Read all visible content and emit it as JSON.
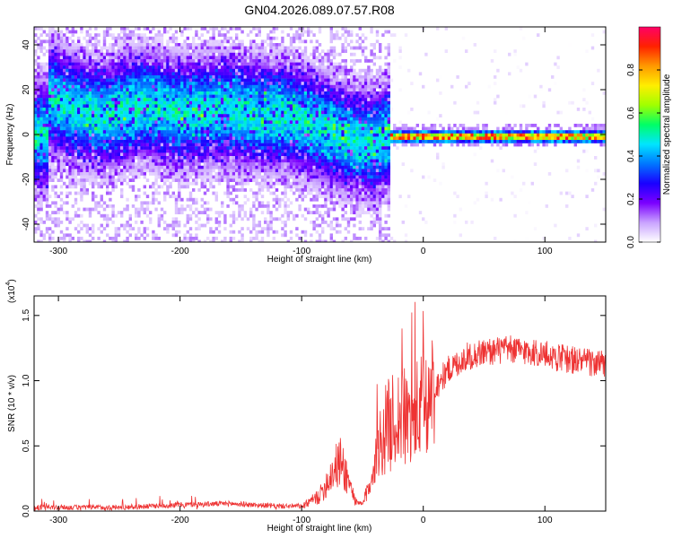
{
  "title": "GN04.2026.089.07.57.R08",
  "chart_data": [
    {
      "type": "heatmap",
      "xlabel": "Height of straight line (km)",
      "ylabel": "Frequency (Hz)",
      "xlim": [
        -320,
        150
      ],
      "ylim": [
        -48,
        48
      ],
      "x_ticks": [
        -300,
        -200,
        -100,
        0,
        100
      ],
      "y_ticks": [
        -40,
        -20,
        0,
        20,
        40
      ],
      "colorbar": {
        "label": "Normalized spectral amplitude",
        "range": [
          0,
          1
        ],
        "ticks": [
          "0.0",
          "0.2",
          "0.4",
          "0.6",
          "0.8"
        ],
        "colors": [
          "#ffffff",
          "#c9a3ff",
          "#7b00ff",
          "#1a00ff",
          "#0077ff",
          "#00e5ff",
          "#00ff66",
          "#a0ff00",
          "#ffee00",
          "#ff9900",
          "#ff2200",
          "#ff0066"
        ]
      },
      "ridge": [
        {
          "x": -310,
          "y": 18
        },
        {
          "x": -290,
          "y": 12
        },
        {
          "x": -260,
          "y": 9
        },
        {
          "x": -230,
          "y": 14
        },
        {
          "x": -200,
          "y": 10
        },
        {
          "x": -170,
          "y": 12
        },
        {
          "x": -140,
          "y": 10
        },
        {
          "x": -110,
          "y": 9
        },
        {
          "x": -80,
          "y": 3
        },
        {
          "x": -60,
          "y": -2
        },
        {
          "x": -40,
          "y": -4
        },
        {
          "x": -30,
          "y": 0
        },
        {
          "x": 0,
          "y": 0
        },
        {
          "x": 50,
          "y": 0
        },
        {
          "x": 100,
          "y": 0
        },
        {
          "x": 150,
          "y": 0
        }
      ]
    },
    {
      "type": "line",
      "xlabel": "Height of straight line (km)",
      "ylabel": "SNR (10 * v/v)",
      "y_multiplier": "(x10",
      "y_multiplier_exp": "4",
      "xlim": [
        -320,
        150
      ],
      "ylim": [
        0,
        1.65
      ],
      "x_ticks": [
        -300,
        -200,
        -100,
        0,
        100
      ],
      "y_ticks": [
        "0.0",
        "0.5",
        "1.0",
        "1.5"
      ],
      "color": "#ee3333",
      "series": [
        {
          "values": [
            {
              "x": -320,
              "y": 0.02
            },
            {
              "x": -250,
              "y": 0.02
            },
            {
              "x": -200,
              "y": 0.04
            },
            {
              "x": -160,
              "y": 0.05
            },
            {
              "x": -140,
              "y": 0.04
            },
            {
              "x": -120,
              "y": 0.03
            },
            {
              "x": -100,
              "y": 0.03
            },
            {
              "x": -85,
              "y": 0.12
            },
            {
              "x": -75,
              "y": 0.3
            },
            {
              "x": -68,
              "y": 0.38
            },
            {
              "x": -62,
              "y": 0.25
            },
            {
              "x": -55,
              "y": 0.06
            },
            {
              "x": -50,
              "y": 0.05
            },
            {
              "x": -45,
              "y": 0.18
            },
            {
              "x": -38,
              "y": 0.45
            },
            {
              "x": -30,
              "y": 0.65
            },
            {
              "x": -20,
              "y": 0.72
            },
            {
              "x": -10,
              "y": 0.7
            },
            {
              "x": 0,
              "y": 0.8
            },
            {
              "x": 10,
              "y": 0.95
            },
            {
              "x": 20,
              "y": 1.08
            },
            {
              "x": 35,
              "y": 1.18
            },
            {
              "x": 50,
              "y": 1.22
            },
            {
              "x": 70,
              "y": 1.24
            },
            {
              "x": 90,
              "y": 1.22
            },
            {
              "x": 110,
              "y": 1.18
            },
            {
              "x": 130,
              "y": 1.15
            },
            {
              "x": 150,
              "y": 1.12
            }
          ]
        }
      ]
    }
  ]
}
